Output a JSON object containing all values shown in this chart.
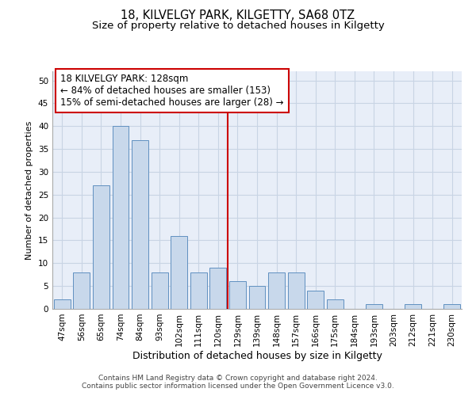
{
  "title": "18, KILVELGY PARK, KILGETTY, SA68 0TZ",
  "subtitle": "Size of property relative to detached houses in Kilgetty",
  "xlabel": "Distribution of detached houses by size in Kilgetty",
  "ylabel": "Number of detached properties",
  "categories": [
    "47sqm",
    "56sqm",
    "65sqm",
    "74sqm",
    "84sqm",
    "93sqm",
    "102sqm",
    "111sqm",
    "120sqm",
    "129sqm",
    "139sqm",
    "148sqm",
    "157sqm",
    "166sqm",
    "175sqm",
    "184sqm",
    "193sqm",
    "203sqm",
    "212sqm",
    "221sqm",
    "230sqm"
  ],
  "values": [
    2,
    8,
    27,
    40,
    37,
    8,
    16,
    8,
    9,
    6,
    5,
    8,
    8,
    4,
    2,
    0,
    1,
    0,
    1,
    0,
    1
  ],
  "bar_color": "#c8d8eb",
  "bar_edge_color": "#6090c0",
  "vline_color": "#cc0000",
  "annotation_text": "18 KILVELGY PARK: 128sqm\n← 84% of detached houses are smaller (153)\n15% of semi-detached houses are larger (28) →",
  "annotation_box_color": "#cc0000",
  "ylim": [
    0,
    52
  ],
  "yticks": [
    0,
    5,
    10,
    15,
    20,
    25,
    30,
    35,
    40,
    45,
    50
  ],
  "grid_color": "#c8d4e4",
  "background_color": "#e8eef8",
  "footer": "Contains HM Land Registry data © Crown copyright and database right 2024.\nContains public sector information licensed under the Open Government Licence v3.0.",
  "title_fontsize": 10.5,
  "subtitle_fontsize": 9.5,
  "xlabel_fontsize": 9,
  "ylabel_fontsize": 8,
  "tick_fontsize": 7.5,
  "annotation_fontsize": 8.5
}
